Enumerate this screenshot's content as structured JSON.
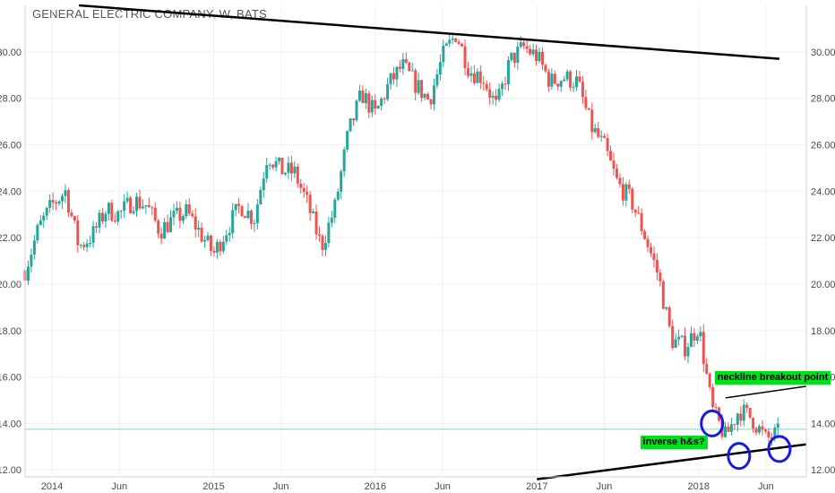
{
  "header": {
    "title": "GENERAL ELECTRIC COMPANY, W, BATS"
  },
  "annotations": {
    "neckline_label": "neckline breakout point",
    "ihs_label": "inverse h&s?"
  },
  "colors": {
    "up": "#26a69a",
    "down": "#ef5350",
    "grid": "#eef0f3",
    "trendline": "#000000",
    "circle": "#1a1ae6",
    "label_bg": "#00e01a",
    "price_line": "#7fd1c7"
  },
  "chart_data": {
    "type": "candlestick",
    "title": "GENERAL ELECTRIC COMPANY, W, BATS",
    "interval": "W",
    "y_ticks": [
      "12.00",
      "14.00",
      "16.00",
      "18.00",
      "20.00",
      "22.00",
      "24.00",
      "26.00",
      "28.00",
      "30.00"
    ],
    "ylim": [
      11.7,
      32.0
    ],
    "x_ticks": [
      "2014",
      "Jun",
      "2015",
      "Jun",
      "2016",
      "Jun",
      "2017",
      "Jun",
      "2018",
      "Jun"
    ],
    "x_tick_dates": [
      "2014-01",
      "2014-06",
      "2015-01",
      "2015-06",
      "2016-01",
      "2016-06",
      "2017-01",
      "2017-06",
      "2018-01",
      "2018-06"
    ],
    "xlim": [
      "2013-11",
      "2018-09"
    ],
    "grid": true,
    "current_price": 13.75,
    "series": [
      {
        "date": "2013-11",
        "close": 20.6
      },
      {
        "date": "2013-12",
        "close": 22.4
      },
      {
        "date": "2014-01",
        "close": 23.4
      },
      {
        "date": "2014-02",
        "close": 24.0
      },
      {
        "date": "2014-03",
        "close": 21.6
      },
      {
        "date": "2014-04",
        "close": 22.1
      },
      {
        "date": "2014-05",
        "close": 23.2
      },
      {
        "date": "2014-06",
        "close": 23.0
      },
      {
        "date": "2014-07",
        "close": 23.6
      },
      {
        "date": "2014-08",
        "close": 23.4
      },
      {
        "date": "2014-09",
        "close": 22.3
      },
      {
        "date": "2014-10",
        "close": 22.8
      },
      {
        "date": "2014-11",
        "close": 23.1
      },
      {
        "date": "2014-12",
        "close": 22.2
      },
      {
        "date": "2015-01",
        "close": 21.3
      },
      {
        "date": "2015-02",
        "close": 22.4
      },
      {
        "date": "2015-03",
        "close": 23.4
      },
      {
        "date": "2015-04",
        "close": 22.8
      },
      {
        "date": "2015-05",
        "close": 25.6
      },
      {
        "date": "2015-06",
        "close": 24.9
      },
      {
        "date": "2015-07",
        "close": 24.8
      },
      {
        "date": "2015-08",
        "close": 23.4
      },
      {
        "date": "2015-09",
        "close": 21.6
      },
      {
        "date": "2015-10",
        "close": 23.3
      },
      {
        "date": "2015-11",
        "close": 26.5
      },
      {
        "date": "2015-12",
        "close": 28.2
      },
      {
        "date": "2016-01",
        "close": 27.3
      },
      {
        "date": "2016-02",
        "close": 28.6
      },
      {
        "date": "2016-03",
        "close": 29.4
      },
      {
        "date": "2016-04",
        "close": 28.6
      },
      {
        "date": "2016-05",
        "close": 27.9
      },
      {
        "date": "2016-06",
        "close": 29.8
      },
      {
        "date": "2016-07",
        "close": 30.8
      },
      {
        "date": "2016-08",
        "close": 29.2
      },
      {
        "date": "2016-09",
        "close": 28.9
      },
      {
        "date": "2016-10",
        "close": 27.6
      },
      {
        "date": "2016-11",
        "close": 29.6
      },
      {
        "date": "2016-12",
        "close": 30.2
      },
      {
        "date": "2017-01",
        "close": 29.8
      },
      {
        "date": "2017-02",
        "close": 28.7
      },
      {
        "date": "2017-03",
        "close": 28.9
      },
      {
        "date": "2017-04",
        "close": 28.7
      },
      {
        "date": "2017-05",
        "close": 26.8
      },
      {
        "date": "2017-06",
        "close": 25.9
      },
      {
        "date": "2017-07",
        "close": 24.3
      },
      {
        "date": "2017-08",
        "close": 23.6
      },
      {
        "date": "2017-09",
        "close": 22.1
      },
      {
        "date": "2017-10",
        "close": 20.4
      },
      {
        "date": "2017-11",
        "close": 17.6
      },
      {
        "date": "2017-12",
        "close": 17.3
      },
      {
        "date": "2018-01",
        "close": 18.2
      },
      {
        "date": "2018-02",
        "close": 14.6
      },
      {
        "date": "2018-03",
        "close": 13.4
      },
      {
        "date": "2018-04",
        "close": 14.6
      },
      {
        "date": "2018-05",
        "close": 14.2
      },
      {
        "date": "2018-06",
        "close": 13.3
      },
      {
        "date": "2018-07",
        "close": 13.6
      }
    ],
    "trendlines": [
      {
        "name": "upper",
        "from": {
          "date": "2014-03",
          "price": 32.0
        },
        "to": {
          "date": "2018-07",
          "price": 29.7
        }
      },
      {
        "name": "lower",
        "from": {
          "date": "2017-01",
          "price": 11.6
        },
        "to": {
          "date": "2018-09",
          "price": 13.1
        }
      },
      {
        "name": "neckline",
        "from": {
          "date": "2018-03",
          "price": 15.1
        },
        "to": {
          "date": "2018-09",
          "price": 15.6
        }
      }
    ],
    "circles": [
      {
        "date": "2018-02",
        "price": 14.0
      },
      {
        "date": "2018-04",
        "price": 12.6
      },
      {
        "date": "2018-07",
        "price": 12.9
      }
    ]
  }
}
